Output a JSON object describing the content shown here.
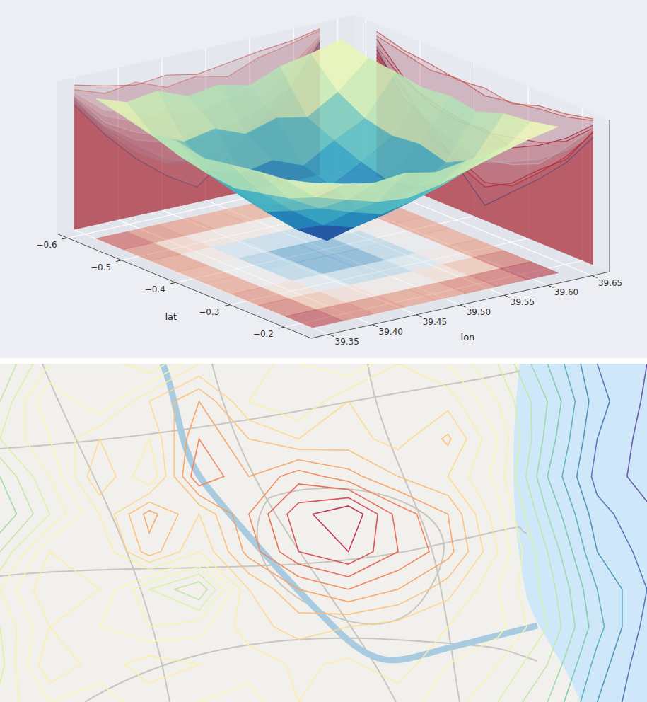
{
  "chart_data": [
    {
      "type": "surface",
      "x_label": "lat",
      "y_label": "lon",
      "xlim": [
        -0.62,
        -0.15
      ],
      "ylim": [
        39.33,
        39.67
      ],
      "zlim": [
        0,
        100
      ],
      "xticks": [
        {
          "value": -0.6,
          "label": "−0.6"
        },
        {
          "value": -0.5,
          "label": "−0.5"
        },
        {
          "value": -0.4,
          "label": "−0.4"
        },
        {
          "value": -0.3,
          "label": "−0.3"
        },
        {
          "value": -0.2,
          "label": "−0.2"
        }
      ],
      "yticks": [
        39.35,
        {
          "value": 39.4,
          "label": "39.40"
        },
        39.45,
        {
          "value": 39.5,
          "label": "39.50"
        },
        39.55,
        {
          "value": 39.6,
          "label": "39.60"
        },
        39.65
      ],
      "grid": true,
      "x": [
        -0.58,
        -0.53,
        -0.48,
        -0.43,
        -0.38,
        -0.33,
        -0.28,
        -0.23,
        -0.18
      ],
      "y": [
        39.35,
        39.385,
        39.42,
        39.455,
        39.49,
        39.525,
        39.56,
        39.595,
        39.63
      ],
      "z": [
        [
          92,
          85,
          88,
          80,
          83,
          78,
          86,
          90,
          95
        ],
        [
          88,
          70,
          62,
          66,
          58,
          64,
          60,
          72,
          90
        ],
        [
          84,
          64,
          50,
          44,
          48,
          40,
          52,
          62,
          88
        ],
        [
          86,
          60,
          42,
          30,
          28,
          34,
          45,
          58,
          85
        ],
        [
          82,
          58,
          38,
          22,
          10,
          25,
          40,
          60,
          87
        ],
        [
          85,
          62,
          46,
          32,
          26,
          30,
          44,
          55,
          84
        ],
        [
          88,
          66,
          55,
          48,
          42,
          46,
          52,
          64,
          90
        ],
        [
          90,
          74,
          68,
          62,
          60,
          64,
          70,
          76,
          92
        ],
        [
          95,
          90,
          86,
          88,
          84,
          87,
          90,
          92,
          96
        ]
      ]
    },
    {
      "type": "contour",
      "tick_labels": false,
      "levels": [
        5,
        10,
        15,
        20,
        25,
        30,
        35,
        40,
        45,
        50,
        55,
        60,
        65,
        70,
        75,
        80,
        85,
        90,
        95
      ],
      "z": [
        [
          30,
          45,
          50,
          40,
          55,
          60,
          50,
          45,
          55,
          50,
          40,
          25,
          10,
          5
        ],
        [
          35,
          55,
          45,
          60,
          70,
          55,
          50,
          60,
          55,
          58,
          45,
          30,
          12,
          4
        ],
        [
          40,
          50,
          60,
          55,
          75,
          65,
          60,
          62,
          58,
          66,
          50,
          28,
          10,
          3
        ],
        [
          30,
          45,
          65,
          50,
          80,
          70,
          78,
          72,
          65,
          60,
          48,
          25,
          8,
          3
        ],
        [
          25,
          40,
          55,
          72,
          60,
          75,
          88,
          95,
          78,
          70,
          52,
          30,
          12,
          6
        ],
        [
          35,
          55,
          50,
          68,
          55,
          72,
          85,
          90,
          80,
          72,
          55,
          35,
          15,
          8
        ],
        [
          45,
          60,
          55,
          40,
          30,
          60,
          70,
          75,
          70,
          62,
          50,
          38,
          20,
          10
        ],
        [
          40,
          55,
          50,
          45,
          48,
          58,
          62,
          60,
          58,
          55,
          52,
          40,
          22,
          8
        ],
        [
          38,
          60,
          52,
          58,
          55,
          52,
          56,
          54,
          58,
          50,
          45,
          35,
          18,
          6
        ],
        [
          42,
          50,
          48,
          52,
          50,
          48,
          55,
          50,
          52,
          48,
          40,
          30,
          15,
          5
        ]
      ]
    }
  ]
}
